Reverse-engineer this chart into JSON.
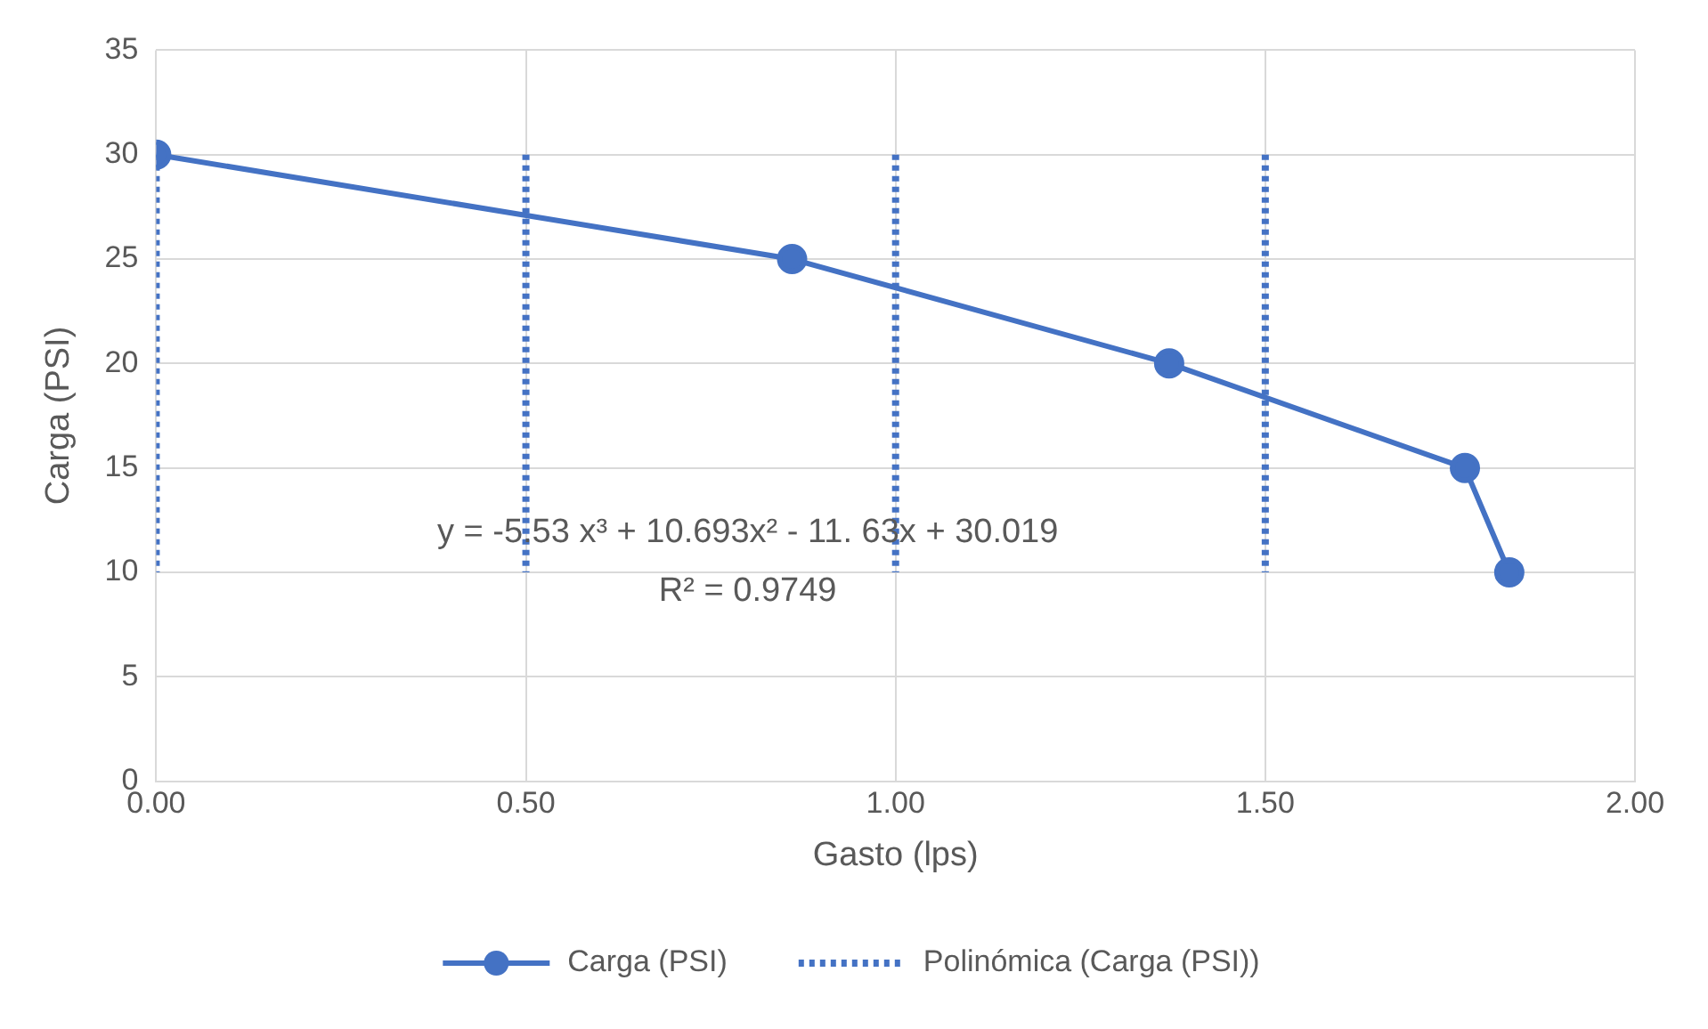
{
  "chart_data": {
    "type": "line",
    "xlabel": "Gasto (lps)",
    "ylabel": "Carga (PSI)",
    "xlim": [
      0,
      2
    ],
    "xticks": [
      {
        "value": 0,
        "label": "0.00"
      },
      {
        "value": 0.5,
        "label": "0.50"
      },
      {
        "value": 1,
        "label": "1.00"
      },
      {
        "value": 1.5,
        "label": "1.50"
      },
      {
        "value": 2,
        "label": "2.00"
      }
    ],
    "ylim": [
      0,
      35
    ],
    "yticks": [
      0,
      5,
      10,
      15,
      20,
      25,
      30,
      35
    ],
    "grid": true,
    "legend": "bottom",
    "series": [
      {
        "name": "Carga (PSI)",
        "color": "#4472c4",
        "marker": "circle",
        "line_style": "solid",
        "x": [
          0,
          0.86,
          1.37,
          1.77,
          1.83
        ],
        "values": [
          30,
          25,
          20,
          15,
          10
        ]
      },
      {
        "name": "Polinómica (Carga (PSI))",
        "color": "#4472c4",
        "marker": "none",
        "line_style": "dotted",
        "x": [
          0,
          0
        ],
        "values": [
          30,
          10
        ]
      },
      {
        "color": "#4472c4",
        "marker": "none",
        "line_style": "dotted",
        "x": [
          0.5,
          0.5
        ],
        "values": [
          30,
          10
        ]
      },
      {
        "color": "#4472c4",
        "marker": "none",
        "line_style": "dotted",
        "x": [
          1,
          1
        ],
        "values": [
          30,
          10
        ]
      },
      {
        "color": "#4472c4",
        "marker": "none",
        "line_style": "dotted",
        "x": [
          1.5,
          1.5
        ],
        "values": [
          30,
          10
        ]
      }
    ],
    "annotations": [
      "y = -5.53 x³ + 10.693x² - 11. 63x + 30.019",
      "R² = 0.9749"
    ]
  }
}
